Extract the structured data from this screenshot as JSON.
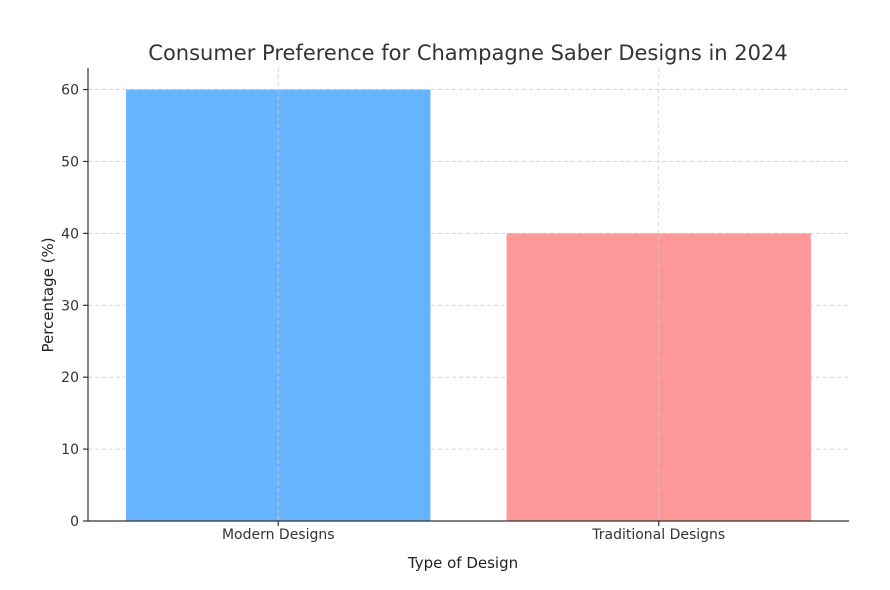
{
  "chart_data": {
    "type": "bar",
    "title": "Consumer Preference for Champagne Saber Designs in 2024",
    "xlabel": "Type of Design",
    "ylabel": "Percentage (%)",
    "categories": [
      "Modern Designs",
      "Traditional Designs"
    ],
    "values": [
      60,
      40
    ],
    "colors": [
      "#66b3ff",
      "#ff9999"
    ],
    "ylim": [
      0,
      63
    ],
    "yticks": [
      0,
      10,
      20,
      30,
      40,
      50,
      60
    ],
    "grid": true,
    "legend": "none"
  }
}
